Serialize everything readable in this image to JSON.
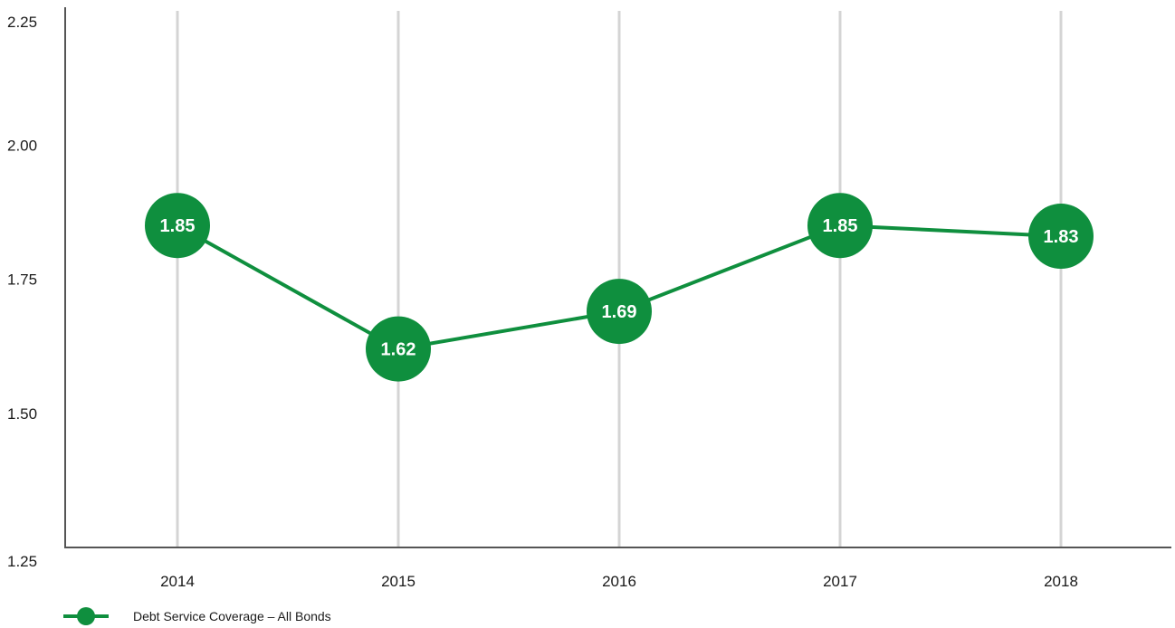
{
  "chart_data": {
    "type": "line",
    "categories": [
      "2014",
      "2015",
      "2016",
      "2017",
      "2018"
    ],
    "series": [
      {
        "name": "Debt Service Coverage – All Bonds",
        "values": [
          1.85,
          1.62,
          1.69,
          1.85,
          1.83
        ]
      }
    ],
    "data_labels": [
      "1.85",
      "1.62",
      "1.69",
      "1.85",
      "1.83"
    ],
    "y_ticks": [
      "1.25",
      "1.50",
      "1.75",
      "2.00",
      "2.25"
    ],
    "ylim": [
      1.25,
      2.25
    ],
    "grid": "vertical",
    "legend_position": "bottom-left",
    "title": "",
    "xlabel": "",
    "ylabel": ""
  },
  "colors": {
    "series": "#0f8f3e",
    "grid": "#d4d4d4",
    "axis": "#555555"
  },
  "legend": {
    "label": "Debt Service Coverage – All Bonds",
    "icon": "line-with-circle-marker-icon"
  }
}
